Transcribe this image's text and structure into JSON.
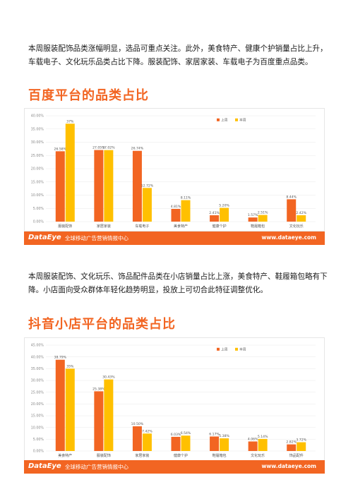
{
  "paragraph1": "本周服装配饰品类涨幅明显，选品可重点关注。此外，美食特产、健康个护销量占比上升，车载电子、文化玩乐品类占比下降。服装配饰、家居家装、车载电子为百度重点品类。",
  "section1_title": "百度平台的品类占比",
  "paragraph2": "本周服装配饰、文化玩乐、饰品配件品类在小店销量占比上涨，美食特产、鞋履箱包略有下降。小店面向受众群体年轻化趋势明显，投放上可切合此特征调整优化。",
  "section2_title": "抖音小店平台的品类占比",
  "footer": {
    "logo": "DataEye",
    "tagline": "全球移动广告营销情报中心",
    "url": "www.dataeye.com"
  },
  "colors": {
    "accent": "#f26522",
    "last_week": "#f26522",
    "this_week": "#ffc000"
  },
  "chart_data": [
    {
      "type": "bar",
      "title": "",
      "categories": [
        "服装配饰",
        "家居家装",
        "车载电子",
        "美食特产",
        "健康个护",
        "鞋履箱包",
        "文化玩乐"
      ],
      "series": [
        {
          "name": "上周",
          "values": [
            26.58,
            27.05,
            26.74,
            4.81,
            2.41,
            1.57,
            8.44
          ],
          "labels": [
            "26.58%",
            "27.05%",
            "26.74%",
            "4.81%",
            "2.41%",
            "1.57%",
            "8.44%"
          ]
        },
        {
          "name": "本周",
          "values": [
            37,
            27.02,
            12.72,
            8.11,
            5.2,
            2.51,
            2.42
          ],
          "labels": [
            "37%",
            "27.02%",
            "12.72%",
            "8.11%",
            "5.20%",
            "2.51%",
            "2.42%"
          ]
        }
      ],
      "ylim": [
        0,
        40
      ],
      "yticks": [
        "0.00%",
        "5.00%",
        "10.00%",
        "15.00%",
        "20.00%",
        "25.00%",
        "30.00%",
        "35.00%",
        "40.00%"
      ],
      "legend": "top-right",
      "grid": true
    },
    {
      "type": "bar",
      "title": "",
      "categories": [
        "美食特产",
        "服装配饰",
        "家居家装",
        "健康个护",
        "鞋履箱包",
        "文化玩乐",
        "饰品配件"
      ],
      "series": [
        {
          "name": "上周",
          "values": [
            38.79,
            25.38,
            10.5,
            6.03,
            6.17,
            4.06,
            2.82
          ],
          "labels": [
            "38.79%",
            "25.38%",
            "10.50%",
            "6.03%",
            "6.17%",
            "4.06%",
            "2.82%"
          ]
        },
        {
          "name": "本周",
          "values": [
            35,
            30.43,
            7.42,
            6.54,
            5.38,
            5.14,
            3.72
          ],
          "labels": [
            "35%",
            "30.43%",
            "7.42%",
            "6.54%",
            "5.38%",
            "5.14%",
            "3.72%"
          ]
        }
      ],
      "ylim": [
        0,
        45
      ],
      "yticks": [
        "0.00%",
        "5.00%",
        "10.00%",
        "15.00%",
        "20.00%",
        "25.00%",
        "30.00%",
        "35.00%",
        "40.00%",
        "45.00%"
      ],
      "legend": "top-right",
      "grid": true
    }
  ]
}
